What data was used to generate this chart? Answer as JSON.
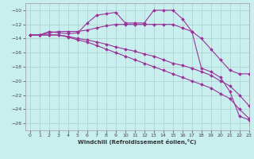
{
  "background_color": "#c8eeee",
  "grid_color": "#aacccc",
  "line_color": "#993399",
  "xlabel": "Windchill (Refroidissement éolien,°C)",
  "xlim": [
    -0.5,
    23
  ],
  "ylim": [
    -27,
    -9
  ],
  "yticks": [
    -10,
    -12,
    -14,
    -16,
    -18,
    -20,
    -22,
    -24,
    -26
  ],
  "xticks": [
    0,
    1,
    2,
    3,
    4,
    5,
    6,
    7,
    8,
    9,
    10,
    11,
    12,
    13,
    14,
    15,
    16,
    17,
    18,
    19,
    20,
    21,
    22,
    23
  ],
  "series": [
    {
      "x": [
        0,
        1,
        2,
        3,
        4,
        5,
        6,
        7,
        8,
        9,
        10,
        11,
        12,
        13,
        14,
        15,
        16,
        17,
        18,
        19,
        20,
        21,
        22,
        23
      ],
      "y": [
        -13.5,
        -13.5,
        -13.0,
        -13.2,
        -13.3,
        -13.2,
        -11.8,
        -10.7,
        -10.5,
        -10.3,
        -11.8,
        -11.8,
        -11.8,
        -10.0,
        -10.0,
        -10.0,
        -11.2,
        -13.0,
        -18.2,
        -18.7,
        -19.5,
        -21.5,
        -25.0,
        -25.5
      ]
    },
    {
      "x": [
        0,
        1,
        2,
        3,
        4,
        5,
        6,
        7,
        8,
        9,
        10,
        11,
        12,
        13,
        14,
        15,
        16,
        17,
        18,
        19,
        20,
        21,
        22,
        23
      ],
      "y": [
        -13.5,
        -13.5,
        -13.2,
        -13.0,
        -13.0,
        -13.0,
        -12.8,
        -12.5,
        -12.2,
        -12.0,
        -12.0,
        -12.0,
        -12.0,
        -12.0,
        -12.0,
        -12.0,
        -12.5,
        -13.0,
        -14.0,
        -15.5,
        -17.0,
        -18.5,
        -19.0,
        -19.0
      ]
    },
    {
      "x": [
        0,
        1,
        2,
        3,
        4,
        5,
        6,
        7,
        8,
        9,
        10,
        11,
        12,
        13,
        14,
        15,
        16,
        17,
        18,
        19,
        20,
        21,
        22,
        23
      ],
      "y": [
        -13.5,
        -13.5,
        -13.5,
        -13.5,
        -13.8,
        -14.2,
        -14.5,
        -15.0,
        -15.5,
        -16.0,
        -16.5,
        -17.0,
        -17.5,
        -18.0,
        -18.5,
        -19.0,
        -19.5,
        -20.0,
        -20.5,
        -21.0,
        -21.8,
        -22.5,
        -24.0,
        -25.3
      ]
    },
    {
      "x": [
        0,
        1,
        2,
        3,
        4,
        5,
        6,
        7,
        8,
        9,
        10,
        11,
        12,
        13,
        14,
        15,
        16,
        17,
        18,
        19,
        20,
        21,
        22,
        23
      ],
      "y": [
        -13.5,
        -13.5,
        -13.5,
        -13.5,
        -13.7,
        -14.0,
        -14.2,
        -14.5,
        -14.8,
        -15.2,
        -15.5,
        -15.8,
        -16.2,
        -16.5,
        -17.0,
        -17.5,
        -17.8,
        -18.2,
        -18.7,
        -19.2,
        -20.0,
        -20.7,
        -22.0,
        -23.5
      ]
    }
  ]
}
